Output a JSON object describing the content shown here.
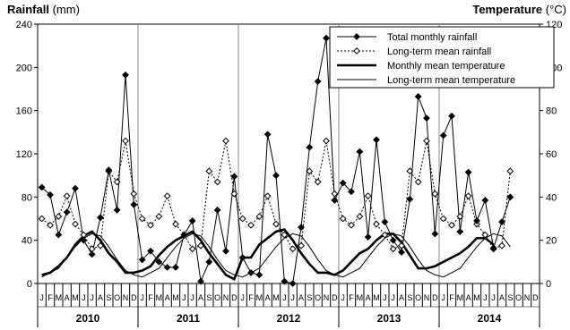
{
  "chart_data": {
    "type": "line",
    "title": "",
    "left_axis": {
      "label_bold": "Rainfall",
      "label_unit": "(mm)",
      "ylim": [
        0,
        240
      ],
      "ticks": [
        0,
        40,
        80,
        120,
        160,
        200,
        240
      ]
    },
    "right_axis": {
      "label_bold": "Temperature",
      "label_unit": "(°C)",
      "ylim": [
        0,
        120
      ],
      "ticks": [
        0,
        20,
        40,
        60,
        80,
        100,
        120
      ]
    },
    "months": [
      "J",
      "F",
      "M",
      "A",
      "M",
      "J",
      "J",
      "A",
      "S",
      "O",
      "N",
      "D"
    ],
    "years": [
      "2010",
      "2011",
      "2012",
      "2013",
      "2014"
    ],
    "grid": false,
    "legend_position": "top-right",
    "series": [
      {
        "name": "Total monthly rainfall",
        "axis": "left",
        "style": "solid-filled-diamond",
        "color": "#000000",
        "values": [
          89,
          82,
          45,
          66,
          88,
          40,
          27,
          61,
          105,
          68,
          193,
          73,
          22,
          30,
          20,
          15,
          15,
          45,
          58,
          2,
          20,
          68,
          30,
          99,
          24,
          10,
          8,
          138,
          100,
          2,
          0,
          52,
          126,
          187,
          227,
          77,
          93,
          85,
          122,
          43,
          133,
          57,
          40,
          29,
          78,
          173,
          153,
          46,
          137,
          155,
          48,
          103,
          58,
          77,
          33,
          57,
          80,
          null,
          null,
          null
        ]
      },
      {
        "name": "Long-term mean rainfall",
        "axis": "left",
        "style": "dotted-open-diamond",
        "color": "#000000",
        "values": [
          60,
          54,
          62,
          81,
          55,
          45,
          32,
          35,
          104,
          94,
          132,
          83,
          60,
          54,
          62,
          81,
          55,
          45,
          32,
          35,
          104,
          94,
          132,
          83,
          60,
          54,
          62,
          81,
          55,
          45,
          32,
          35,
          104,
          94,
          132,
          83,
          60,
          54,
          62,
          81,
          55,
          45,
          32,
          35,
          104,
          94,
          132,
          83,
          60,
          54,
          62,
          81,
          55,
          45,
          32,
          35,
          104,
          null,
          null,
          null
        ]
      },
      {
        "name": "Monthly mean temperature",
        "axis": "right",
        "style": "thick-solid",
        "color": "#000000",
        "values": [
          4,
          5,
          8,
          12,
          18,
          22,
          24,
          20,
          14,
          10,
          5,
          5,
          6,
          8,
          13,
          17,
          20,
          22,
          24,
          20,
          14,
          9,
          4,
          2,
          12,
          12,
          18,
          21,
          24,
          25,
          20,
          14,
          9,
          5,
          5,
          4,
          6,
          10,
          14,
          16,
          20,
          23,
          23,
          19,
          13,
          7,
          7,
          8,
          10,
          12,
          14,
          17,
          21,
          21,
          18,
          null,
          null,
          null,
          null,
          null
        ]
      },
      {
        "name": "Long-term mean temperature",
        "axis": "right",
        "style": "thin-solid",
        "color": "#000000",
        "values": [
          3,
          5,
          7,
          12,
          17,
          21,
          23,
          22,
          17,
          11,
          6,
          4,
          3,
          5,
          7,
          12,
          17,
          21,
          23,
          22,
          17,
          11,
          6,
          4,
          3,
          5,
          7,
          12,
          17,
          21,
          23,
          22,
          17,
          11,
          6,
          4,
          3,
          5,
          7,
          12,
          17,
          21,
          23,
          22,
          17,
          11,
          6,
          4,
          3,
          5,
          7,
          12,
          17,
          21,
          23,
          22,
          17,
          null,
          null,
          null
        ]
      }
    ]
  }
}
